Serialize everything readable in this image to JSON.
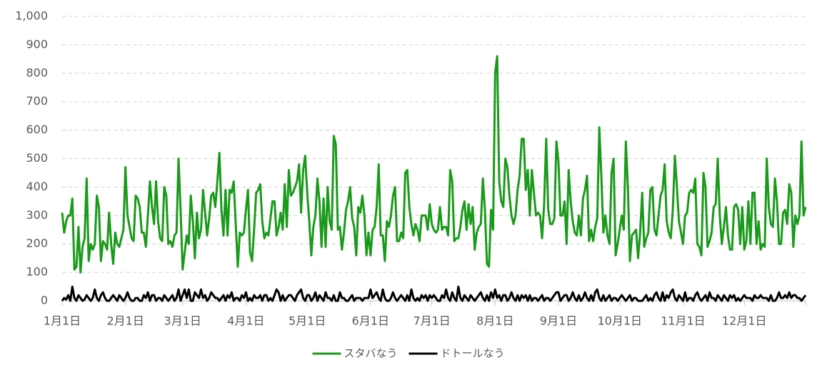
{
  "chart_data": {
    "type": "line",
    "categories": [
      "1月1日",
      null,
      null,
      null,
      null,
      null,
      null,
      null,
      null,
      null,
      null,
      null,
      null,
      null,
      null,
      null,
      null,
      null,
      null,
      null,
      null,
      null,
      null,
      null,
      null,
      null,
      null,
      null,
      null,
      null,
      null,
      "2月1日",
      null,
      null,
      null,
      null,
      null,
      null,
      null,
      null,
      null,
      null,
      null,
      null,
      null,
      null,
      null,
      null,
      null,
      null,
      null,
      null,
      null,
      null,
      null,
      null,
      null,
      null,
      null,
      "3月1日",
      null,
      null,
      null,
      null,
      null,
      null,
      null,
      null,
      null,
      null,
      null,
      null,
      null,
      null,
      null,
      null,
      null,
      null,
      null,
      null,
      null,
      null,
      null,
      null,
      null,
      null,
      null,
      null,
      null,
      null,
      "4月1日",
      null,
      null,
      null,
      null,
      null,
      null,
      null,
      null,
      null,
      null,
      null,
      null,
      null,
      null,
      null,
      null,
      null,
      null,
      null,
      null,
      null,
      null,
      null,
      null,
      null,
      null,
      null,
      null,
      null,
      "5月1日",
      null,
      null,
      null,
      null,
      null,
      null,
      null,
      null,
      null,
      null,
      null,
      null,
      null,
      null,
      null,
      null,
      null,
      null,
      null,
      null,
      null,
      null,
      null,
      null,
      null,
      null,
      null,
      null,
      null,
      null,
      "6月1日",
      null,
      null,
      null,
      null,
      null,
      null,
      null,
      null,
      null,
      null,
      null,
      null,
      null,
      null,
      null,
      null,
      null,
      null,
      null,
      null,
      null,
      null,
      null,
      null,
      null,
      null,
      null,
      null,
      null,
      "7月1日",
      null,
      null,
      null,
      null,
      null,
      null,
      null,
      null,
      null,
      null,
      null,
      null,
      null,
      null,
      null,
      null,
      null,
      null,
      null,
      null,
      null,
      null,
      null,
      null,
      null,
      null,
      null,
      null,
      null,
      null,
      "8月1日",
      null,
      null,
      null,
      null,
      null,
      null,
      null,
      null,
      null,
      null,
      null,
      null,
      null,
      null,
      null,
      null,
      null,
      null,
      null,
      null,
      null,
      null,
      null,
      null,
      null,
      null,
      null,
      null,
      null,
      null,
      "9月1日",
      null,
      null,
      null,
      null,
      null,
      null,
      null,
      null,
      null,
      null,
      null,
      null,
      null,
      null,
      null,
      null,
      null,
      null,
      null,
      null,
      null,
      null,
      null,
      null,
      null,
      null,
      null,
      null,
      null,
      "10月1日",
      null,
      null,
      null,
      null,
      null,
      null,
      null,
      null,
      null,
      null,
      null,
      null,
      null,
      null,
      null,
      null,
      null,
      null,
      null,
      null,
      null,
      null,
      null,
      null,
      null,
      null,
      null,
      null,
      null,
      null,
      "11月1日",
      null,
      null,
      null,
      null,
      null,
      null,
      null,
      null,
      null,
      null,
      null,
      null,
      null,
      null,
      null,
      null,
      null,
      null,
      null,
      null,
      null,
      null,
      null,
      null,
      null,
      null,
      null,
      null,
      null,
      "12月1日",
      null,
      null,
      null,
      null,
      null,
      null,
      null,
      null,
      null,
      null,
      null,
      null,
      null,
      null,
      null,
      null,
      null,
      null,
      null,
      null,
      null,
      null,
      null,
      null,
      null,
      null,
      null,
      null,
      null,
      null
    ],
    "series": [
      {
        "name": "スタバなう",
        "color": "#1a9a1a",
        "values": [
          310,
          240,
          280,
          300,
          300,
          360,
          110,
          120,
          260,
          100,
          190,
          220,
          430,
          140,
          200,
          180,
          200,
          370,
          330,
          140,
          210,
          200,
          180,
          310,
          200,
          130,
          240,
          200,
          190,
          220,
          250,
          470,
          300,
          260,
          220,
          210,
          370,
          360,
          330,
          240,
          240,
          190,
          300,
          420,
          330,
          270,
          420,
          280,
          220,
          210,
          400,
          370,
          200,
          210,
          190,
          230,
          240,
          500,
          320,
          110,
          170,
          230,
          200,
          370,
          280,
          150,
          310,
          220,
          250,
          390,
          310,
          230,
          290,
          370,
          380,
          330,
          420,
          520,
          320,
          230,
          390,
          230,
          390,
          380,
          420,
          270,
          120,
          240,
          230,
          240,
          320,
          390,
          170,
          140,
          250,
          380,
          390,
          410,
          280,
          220,
          240,
          230,
          290,
          350,
          350,
          230,
          260,
          310,
          250,
          410,
          260,
          460,
          370,
          380,
          400,
          420,
          480,
          310,
          460,
          510,
          380,
          280,
          160,
          260,
          300,
          430,
          350,
          190,
          360,
          190,
          400,
          280,
          250,
          580,
          550,
          250,
          260,
          180,
          240,
          320,
          350,
          400,
          290,
          260,
          160,
          330,
          310,
          370,
          300,
          160,
          240,
          160,
          250,
          260,
          330,
          480,
          230,
          230,
          140,
          280,
          260,
          300,
          370,
          400,
          210,
          210,
          240,
          220,
          450,
          460,
          330,
          270,
          230,
          270,
          250,
          210,
          300,
          300,
          300,
          250,
          340,
          270,
          250,
          240,
          250,
          330,
          250,
          260,
          260,
          230,
          460,
          420,
          210,
          220,
          220,
          260,
          320,
          350,
          250,
          340,
          270,
          330,
          180,
          240,
          260,
          270,
          430,
          320,
          130,
          120,
          320,
          250,
          800,
          860,
          420,
          350,
          330,
          500,
          470,
          370,
          300,
          270,
          300,
          390,
          440,
          570,
          570,
          390,
          460,
          300,
          460,
          380,
          300,
          310,
          300,
          220,
          340,
          570,
          320,
          270,
          270,
          290,
          560,
          490,
          300,
          300,
          350,
          200,
          460,
          350,
          280,
          240,
          230,
          300,
          230,
          360,
          390,
          440,
          210,
          250,
          210,
          260,
          290,
          610,
          440,
          240,
          300,
          230,
          200,
          450,
          500,
          160,
          200,
          250,
          300,
          250,
          560,
          400,
          140,
          230,
          240,
          250,
          150,
          240,
          380,
          190,
          220,
          240,
          390,
          400,
          250,
          230,
          300,
          370,
          390,
          480,
          280,
          240,
          220,
          320,
          510,
          400,
          280,
          240,
          200,
          300,
          310,
          380,
          390,
          380,
          430,
          200,
          190,
          160,
          450,
          400,
          190,
          210,
          240,
          330,
          340,
          500,
          300,
          200,
          260,
          330,
          230,
          180,
          180,
          330,
          340,
          320,
          200,
          330,
          180,
          210,
          350,
          200,
          380,
          380,
          200,
          280,
          180,
          200,
          190,
          500,
          330,
          270,
          260,
          430,
          350,
          200,
          200,
          310,
          320,
          270,
          410,
          380,
          190,
          300,
          270,
          300,
          560,
          300,
          330
        ]
      },
      {
        "name": "ドトールなう",
        "color": "#000000",
        "values": [
          0,
          10,
          5,
          20,
          0,
          50,
          10,
          0,
          20,
          10,
          0,
          5,
          20,
          10,
          0,
          10,
          40,
          10,
          0,
          20,
          30,
          10,
          0,
          0,
          10,
          20,
          10,
          0,
          20,
          10,
          0,
          10,
          30,
          10,
          0,
          0,
          10,
          10,
          0,
          0,
          20,
          10,
          30,
          0,
          20,
          20,
          0,
          10,
          10,
          0,
          20,
          10,
          0,
          10,
          20,
          0,
          10,
          40,
          0,
          20,
          40,
          10,
          40,
          0,
          0,
          30,
          20,
          10,
          40,
          10,
          20,
          0,
          10,
          30,
          20,
          10,
          10,
          0,
          10,
          20,
          0,
          20,
          10,
          30,
          0,
          10,
          10,
          0,
          20,
          10,
          30,
          0,
          10,
          0,
          20,
          10,
          10,
          20,
          0,
          20,
          20,
          0,
          10,
          0,
          20,
          40,
          30,
          0,
          20,
          0,
          10,
          20,
          20,
          10,
          0,
          20,
          30,
          40,
          10,
          0,
          20,
          20,
          0,
          10,
          30,
          0,
          20,
          10,
          0,
          30,
          10,
          10,
          0,
          20,
          0,
          0,
          30,
          10,
          10,
          0,
          0,
          10,
          20,
          0,
          10,
          10,
          10,
          0,
          10,
          10,
          10,
          40,
          10,
          20,
          30,
          10,
          0,
          40,
          10,
          0,
          0,
          10,
          30,
          10,
          0,
          10,
          20,
          10,
          0,
          20,
          0,
          40,
          10,
          0,
          10,
          0,
          20,
          10,
          20,
          0,
          20,
          10,
          20,
          10,
          0,
          0,
          20,
          10,
          40,
          10,
          0,
          30,
          10,
          0,
          50,
          10,
          0,
          20,
          10,
          0,
          20,
          10,
          0,
          10,
          20,
          30,
          10,
          0,
          20,
          0,
          30,
          10,
          40,
          10,
          20,
          0,
          20,
          20,
          0,
          10,
          30,
          10,
          0,
          20,
          0,
          20,
          10,
          20,
          0,
          20,
          0,
          10,
          10,
          0,
          10,
          20,
          0,
          10,
          10,
          0,
          10,
          20,
          30,
          30,
          0,
          10,
          20,
          20,
          0,
          10,
          30,
          10,
          0,
          20,
          0,
          10,
          30,
          10,
          0,
          20,
          0,
          30,
          40,
          10,
          0,
          20,
          0,
          10,
          20,
          0,
          10,
          10,
          0,
          10,
          20,
          10,
          0,
          10,
          20,
          0,
          10,
          10,
          0,
          0,
          0,
          10,
          20,
          0,
          10,
          0,
          20,
          30,
          10,
          0,
          30,
          0,
          20,
          10,
          30,
          40,
          10,
          0,
          20,
          10,
          0,
          30,
          0,
          10,
          10,
          0,
          20,
          30,
          10,
          0,
          10,
          20,
          0,
          30,
          10,
          10,
          0,
          20,
          10,
          0,
          20,
          10,
          0,
          20,
          10,
          20,
          0,
          10,
          0,
          10,
          20,
          10,
          10,
          10,
          0,
          20,
          10,
          10,
          20,
          10,
          10,
          10,
          0,
          20,
          0,
          0,
          10,
          30,
          10,
          10,
          20,
          10,
          30,
          10,
          20,
          20,
          10,
          10,
          0,
          10,
          20
        ]
      }
    ],
    "ylim": [
      0,
      1000
    ],
    "yticks": [
      0,
      100,
      200,
      300,
      400,
      500,
      600,
      700,
      800,
      900,
      {
        "value": 1000,
        "label": "1,000"
      }
    ],
    "grid": true,
    "legend": "bottom"
  }
}
